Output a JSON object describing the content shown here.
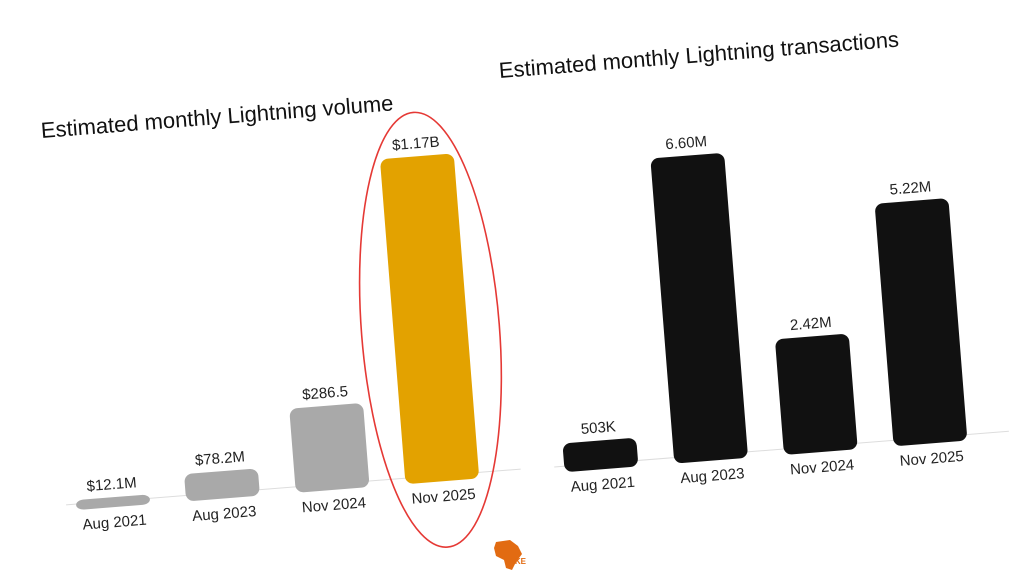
{
  "chart_data": [
    {
      "type": "bar",
      "title": "Estimated monthly Lightning volume",
      "categories": [
        "Aug 2021",
        "Aug 2023",
        "Nov 2024",
        "Nov 2025"
      ],
      "values": [
        12.1,
        78.2,
        286.5,
        1170
      ],
      "unit": "USD millions",
      "value_labels": [
        "$12.1M",
        "$78.2M",
        "$286.5",
        "$1.17B"
      ],
      "highlight_index": 3,
      "colors": [
        "#a9a9a9",
        "#a9a9a9",
        "#a9a9a9",
        "#e3a200"
      ],
      "annotation": "red ellipse around Nov 2025 bar"
    },
    {
      "type": "bar",
      "title": "Estimated monthly Lightning transactions",
      "categories": [
        "Aug 2021",
        "Aug 2023",
        "Nov 2024",
        "Nov 2025"
      ],
      "values": [
        0.503,
        6.6,
        2.42,
        5.22
      ],
      "unit": "millions",
      "value_labels": [
        "503K",
        "6.60M",
        "2.42M",
        "5.22M"
      ],
      "colors": [
        "#111111",
        "#111111",
        "#111111",
        "#111111"
      ]
    }
  ],
  "watermark": {
    "text": "itKE",
    "color": "#e26b12"
  }
}
